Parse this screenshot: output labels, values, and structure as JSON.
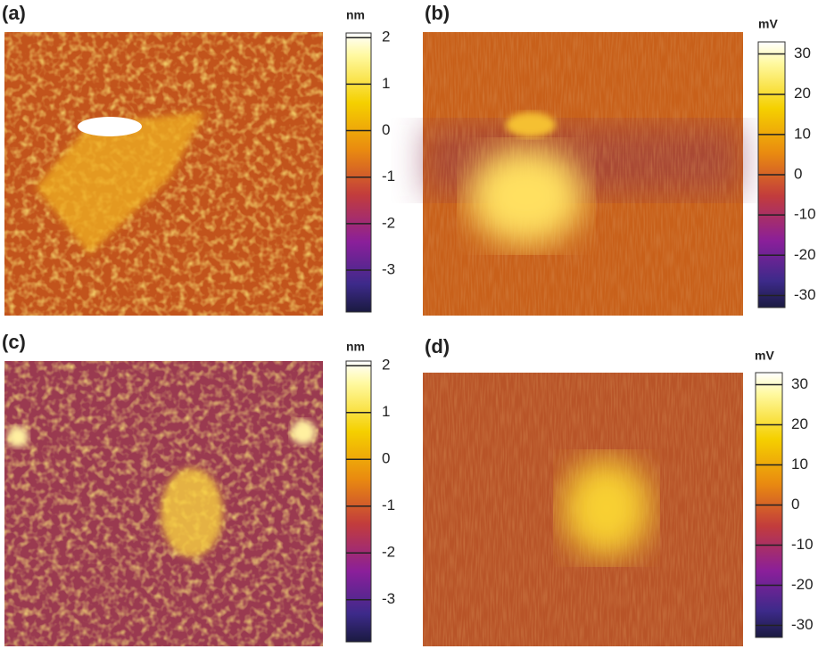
{
  "panels": [
    {
      "label": "(a)",
      "unit": "nm",
      "scale": {
        "lim": [
          -3.9,
          2.1
        ],
        "ticks": [
          2,
          1,
          0,
          -1,
          -2,
          -3
        ]
      }
    },
    {
      "label": "(b)",
      "unit": "mV",
      "scale": {
        "lim": [
          -33,
          33
        ],
        "ticks": [
          30,
          20,
          10,
          0,
          -10,
          -20,
          -30
        ]
      }
    },
    {
      "label": "(c)",
      "unit": "nm",
      "scale": {
        "lim": [
          -3.9,
          2.1
        ],
        "ticks": [
          2,
          1,
          0,
          -1,
          -2,
          -3
        ]
      }
    },
    {
      "label": "(d)",
      "unit": "mV",
      "scale": {
        "lim": [
          -33,
          33
        ],
        "ticks": [
          30,
          20,
          10,
          0,
          -10,
          -20,
          -30
        ]
      }
    }
  ]
}
